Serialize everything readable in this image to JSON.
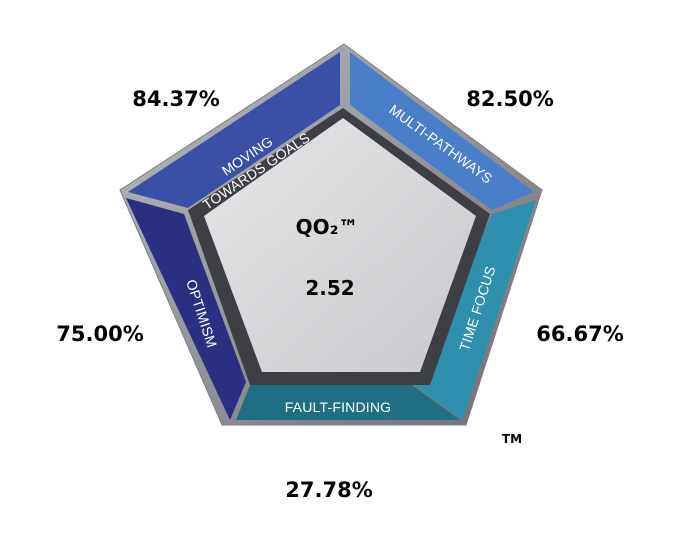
{
  "center": {
    "title": "QO₂™",
    "value": "2.52"
  },
  "segments": [
    {
      "id": "moving-towards-goals",
      "label_lines": [
        "MOVING",
        "TOWARDS GOALS"
      ],
      "percent": "84.37%",
      "color": "#3a4fa6"
    },
    {
      "id": "multi-pathways",
      "label_lines": [
        "MULTI-PATHWAYS"
      ],
      "percent": "82.50%",
      "color": "#4a7ec8"
    },
    {
      "id": "time-focus",
      "label_lines": [
        "TIME FOCUS"
      ],
      "percent": "66.67%",
      "color": "#2f8fae"
    },
    {
      "id": "fault-finding",
      "label_lines": [
        "FAULT-FINDING"
      ],
      "percent": "27.78%",
      "color": "#1f6f84"
    },
    {
      "id": "optimism",
      "label_lines": [
        "OPTIMISM"
      ],
      "percent": "75.00%",
      "color": "#2a2f82"
    }
  ],
  "trademark": "TM"
}
